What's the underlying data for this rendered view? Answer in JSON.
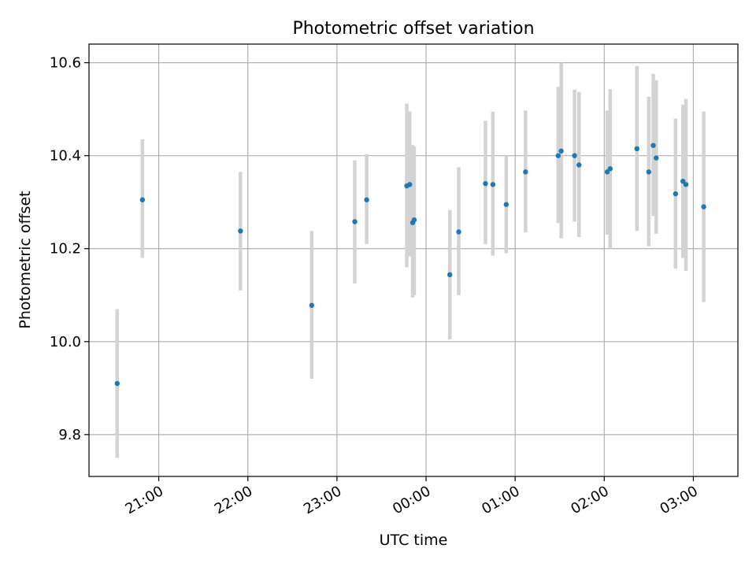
{
  "chart_data": {
    "type": "scatter",
    "title": "Photometric offset variation",
    "xlabel": "UTC time",
    "ylabel": "Photometric offset",
    "x_axis": "time",
    "x_start": "20:13",
    "x_end": "03:30",
    "x_ticks": [
      "21:00",
      "22:00",
      "23:00",
      "00:00",
      "01:00",
      "02:00",
      "03:00"
    ],
    "ylim": [
      9.71,
      10.64
    ],
    "y_ticks": [
      9.8,
      10.0,
      10.2,
      10.4,
      10.6
    ],
    "y_tick_labels": [
      "9.8",
      "10.0",
      "10.2",
      "10.4",
      "10.6"
    ],
    "grid": true,
    "colors": {
      "points": "#1f77b4",
      "error_bars": "#d3d3d3",
      "grid": "#b0b0b0"
    },
    "points": [
      {
        "x": "20:32",
        "y": 9.91,
        "yerr_low": 9.75,
        "yerr_high": 10.07
      },
      {
        "x": "20:49",
        "y": 10.305,
        "yerr_low": 10.18,
        "yerr_high": 10.435
      },
      {
        "x": "21:55",
        "y": 10.238,
        "yerr_low": 10.11,
        "yerr_high": 10.365
      },
      {
        "x": "22:43",
        "y": 10.078,
        "yerr_low": 9.92,
        "yerr_high": 10.238
      },
      {
        "x": "23:12",
        "y": 10.258,
        "yerr_low": 10.125,
        "yerr_high": 10.39
      },
      {
        "x": "23:20",
        "y": 10.305,
        "yerr_low": 10.21,
        "yerr_high": 10.403
      },
      {
        "x": "23:47",
        "y": 10.335,
        "yerr_low": 10.16,
        "yerr_high": 10.512
      },
      {
        "x": "23:49",
        "y": 10.338,
        "yerr_low": 10.183,
        "yerr_high": 10.495
      },
      {
        "x": "23:51",
        "y": 10.256,
        "yerr_low": 10.095,
        "yerr_high": 10.423
      },
      {
        "x": "23:52",
        "y": 10.262,
        "yerr_low": 10.1,
        "yerr_high": 10.42
      },
      {
        "x": "00:16",
        "y": 10.144,
        "yerr_low": 10.005,
        "yerr_high": 10.283
      },
      {
        "x": "00:22",
        "y": 10.236,
        "yerr_low": 10.1,
        "yerr_high": 10.375
      },
      {
        "x": "00:40",
        "y": 10.34,
        "yerr_low": 10.21,
        "yerr_high": 10.475
      },
      {
        "x": "00:45",
        "y": 10.338,
        "yerr_low": 10.185,
        "yerr_high": 10.495
      },
      {
        "x": "00:54",
        "y": 10.295,
        "yerr_low": 10.19,
        "yerr_high": 10.4
      },
      {
        "x": "01:07",
        "y": 10.365,
        "yerr_low": 10.235,
        "yerr_high": 10.497
      },
      {
        "x": "01:29",
        "y": 10.4,
        "yerr_low": 10.255,
        "yerr_high": 10.548
      },
      {
        "x": "01:31",
        "y": 10.41,
        "yerr_low": 10.222,
        "yerr_high": 10.6
      },
      {
        "x": "01:40",
        "y": 10.4,
        "yerr_low": 10.258,
        "yerr_high": 10.542
      },
      {
        "x": "01:43",
        "y": 10.38,
        "yerr_low": 10.225,
        "yerr_high": 10.537
      },
      {
        "x": "02:02",
        "y": 10.365,
        "yerr_low": 10.23,
        "yerr_high": 10.497
      },
      {
        "x": "02:04",
        "y": 10.372,
        "yerr_low": 10.2,
        "yerr_high": 10.543
      },
      {
        "x": "02:22",
        "y": 10.415,
        "yerr_low": 10.238,
        "yerr_high": 10.593
      },
      {
        "x": "02:30",
        "y": 10.365,
        "yerr_low": 10.205,
        "yerr_high": 10.527
      },
      {
        "x": "02:33",
        "y": 10.422,
        "yerr_low": 10.27,
        "yerr_high": 10.576
      },
      {
        "x": "02:35",
        "y": 10.395,
        "yerr_low": 10.232,
        "yerr_high": 10.562
      },
      {
        "x": "02:48",
        "y": 10.318,
        "yerr_low": 10.157,
        "yerr_high": 10.48
      },
      {
        "x": "02:53",
        "y": 10.345,
        "yerr_low": 10.18,
        "yerr_high": 10.51
      },
      {
        "x": "02:55",
        "y": 10.338,
        "yerr_low": 10.152,
        "yerr_high": 10.522
      },
      {
        "x": "03:07",
        "y": 10.29,
        "yerr_low": 10.085,
        "yerr_high": 10.495
      }
    ]
  }
}
